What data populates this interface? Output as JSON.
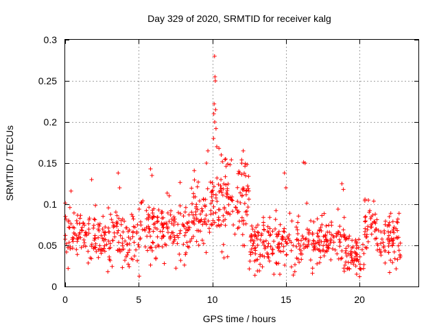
{
  "chart_data": {
    "type": "scatter",
    "title": "Day 329 of 2020, SRMTID for receiver kalg",
    "xlabel": "GPS time / hours",
    "ylabel": "SRMTID / TECUs",
    "xlim": [
      0,
      24
    ],
    "ylim": [
      0,
      0.3
    ],
    "xticks": [
      0,
      5,
      10,
      15,
      20
    ],
    "xtick_labels": [
      "0",
      "5",
      "10",
      "15",
      "20"
    ],
    "yticks": [
      0,
      0.05,
      0.1,
      0.15,
      0.2,
      0.25,
      0.3
    ],
    "ytick_labels": [
      "0",
      "0.05",
      "0.1",
      "0.15",
      "0.2",
      "0.25",
      "0.3"
    ],
    "grid": true,
    "marker": "+",
    "series": [
      {
        "name": "SRMTID",
        "color": "#ff0000",
        "segments": [
          {
            "from": 0.0,
            "to": 1.5,
            "mean": 0.065,
            "spread": 0.02,
            "n": 60
          },
          {
            "from": 1.5,
            "to": 3.5,
            "mean": 0.058,
            "spread": 0.02,
            "n": 80
          },
          {
            "from": 3.5,
            "to": 5.0,
            "mean": 0.055,
            "spread": 0.02,
            "n": 60
          },
          {
            "from": 5.0,
            "to": 8.5,
            "mean": 0.07,
            "spread": 0.02,
            "n": 150
          },
          {
            "from": 8.5,
            "to": 10.0,
            "mean": 0.085,
            "spread": 0.025,
            "n": 70
          },
          {
            "from": 10.0,
            "to": 12.5,
            "mean": 0.1,
            "spread": 0.03,
            "n": 120
          },
          {
            "from": 12.5,
            "to": 15.5,
            "mean": 0.05,
            "spread": 0.02,
            "n": 130
          },
          {
            "from": 15.5,
            "to": 19.0,
            "mean": 0.055,
            "spread": 0.02,
            "n": 140
          },
          {
            "from": 19.0,
            "to": 20.3,
            "mean": 0.04,
            "spread": 0.015,
            "n": 60
          },
          {
            "from": 20.3,
            "to": 21.2,
            "mean": 0.07,
            "spread": 0.02,
            "n": 40
          },
          {
            "from": 21.2,
            "to": 22.8,
            "mean": 0.055,
            "spread": 0.02,
            "n": 70
          }
        ],
        "points": [
          {
            "x": 10.15,
            "y": 0.28
          },
          {
            "x": 10.18,
            "y": 0.255
          },
          {
            "x": 10.2,
            "y": 0.25
          },
          {
            "x": 10.12,
            "y": 0.222
          },
          {
            "x": 10.22,
            "y": 0.215
          },
          {
            "x": 10.1,
            "y": 0.21
          },
          {
            "x": 10.16,
            "y": 0.2
          },
          {
            "x": 10.25,
            "y": 0.192
          },
          {
            "x": 10.08,
            "y": 0.18
          },
          {
            "x": 10.3,
            "y": 0.17
          },
          {
            "x": 10.45,
            "y": 0.168
          },
          {
            "x": 10.6,
            "y": 0.16
          },
          {
            "x": 10.9,
            "y": 0.155
          },
          {
            "x": 11.2,
            "y": 0.148
          },
          {
            "x": 12.1,
            "y": 0.165
          },
          {
            "x": 12.0,
            "y": 0.15
          },
          {
            "x": 11.8,
            "y": 0.14
          },
          {
            "x": 9.7,
            "y": 0.165
          },
          {
            "x": 9.6,
            "y": 0.15
          },
          {
            "x": 5.8,
            "y": 0.143
          },
          {
            "x": 5.9,
            "y": 0.135
          },
          {
            "x": 3.6,
            "y": 0.138
          },
          {
            "x": 3.7,
            "y": 0.12
          },
          {
            "x": 1.8,
            "y": 0.13
          },
          {
            "x": 0.4,
            "y": 0.116
          },
          {
            "x": 16.2,
            "y": 0.151
          },
          {
            "x": 16.3,
            "y": 0.15
          },
          {
            "x": 14.9,
            "y": 0.138
          },
          {
            "x": 15.0,
            "y": 0.12
          },
          {
            "x": 18.8,
            "y": 0.125
          },
          {
            "x": 18.9,
            "y": 0.118
          },
          {
            "x": 20.6,
            "y": 0.105
          },
          {
            "x": 22.6,
            "y": 0.082
          },
          {
            "x": 15.5,
            "y": 0.014
          },
          {
            "x": 15.6,
            "y": 0.018
          },
          {
            "x": 16.8,
            "y": 0.016
          },
          {
            "x": 19.8,
            "y": 0.015
          },
          {
            "x": 20.0,
            "y": 0.012
          },
          {
            "x": 2.9,
            "y": 0.018
          },
          {
            "x": 5.8,
            "y": 0.026
          },
          {
            "x": 0.2,
            "y": 0.022
          }
        ]
      }
    ]
  }
}
